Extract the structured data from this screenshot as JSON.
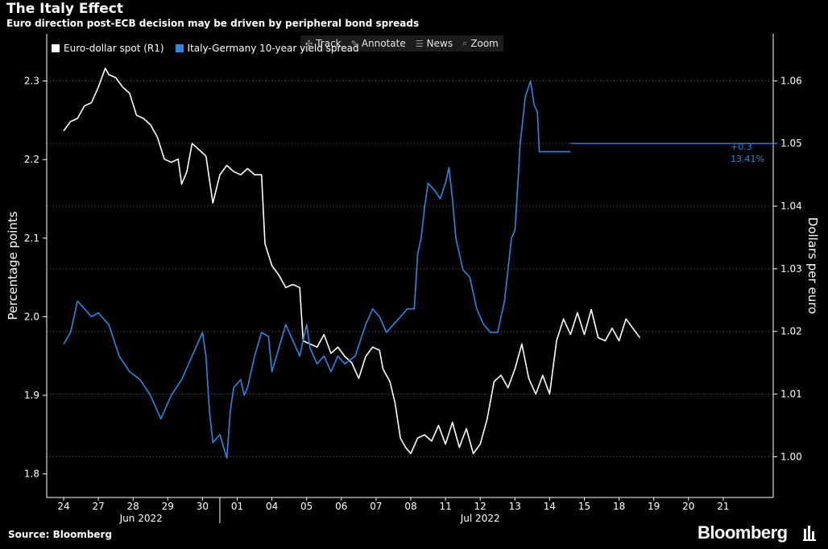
{
  "header": {
    "title": "The Italy Effect",
    "subtitle": "Euro direction post-ECB decision may be driven by peripheral bond spreads"
  },
  "toolbar": [
    {
      "label": "Track",
      "icon": "crosshair-icon",
      "glyph": "✣"
    },
    {
      "label": "Annotate",
      "icon": "pencil-icon",
      "glyph": "✎"
    },
    {
      "label": "News",
      "icon": "news-icon",
      "glyph": "☰"
    },
    {
      "label": "Zoom",
      "icon": "magnifier-icon",
      "glyph": "⌕"
    }
  ],
  "footer": {
    "source": "Source: Bloomberg",
    "brand": "Bloomberg"
  },
  "chart_data": {
    "type": "line",
    "x_tick_labels": [
      "24",
      "27",
      "28",
      "29",
      "30",
      "01",
      "04",
      "05",
      "06",
      "07",
      "08",
      "11",
      "12",
      "13",
      "14",
      "15",
      "18",
      "19",
      "20",
      "21"
    ],
    "month_labels": [
      "Jun 2022",
      "Jul 2022"
    ],
    "ylabel_left": "Percentage points",
    "ylabel_right": "Dollars per euro",
    "yticks_left": [
      "1.8",
      "1.9",
      "2.0",
      "2.1",
      "2.2",
      "2.3"
    ],
    "yticks_right": [
      "1.00",
      "1.01",
      "1.02",
      "1.03",
      "1.04",
      "1.05",
      "1.06"
    ],
    "ylim_left": [
      1.77,
      2.36
    ],
    "ylim_right": [
      0.9935,
      1.0675
    ],
    "grid": "horizontal dotted",
    "legend_position": "top-left",
    "annotation": {
      "line1": "+0.3",
      "line2": "13.41%"
    },
    "colors": {
      "euro": "#ffffff",
      "spread": "#2f86e3",
      "grid": "#666666",
      "annotation": "#2f86e3"
    },
    "series": [
      {
        "name": "Euro-dollar spot (R1)",
        "axis": "right",
        "values": [
          [
            0.0,
            1.052
          ],
          [
            0.2,
            1.0535
          ],
          [
            0.4,
            1.054
          ],
          [
            0.6,
            1.056
          ],
          [
            0.8,
            1.0565
          ],
          [
            1.0,
            1.059
          ],
          [
            1.2,
            1.062
          ],
          [
            1.3,
            1.061
          ],
          [
            1.5,
            1.0605
          ],
          [
            1.7,
            1.059
          ],
          [
            1.9,
            1.058
          ],
          [
            2.1,
            1.0545
          ],
          [
            2.3,
            1.054
          ],
          [
            2.5,
            1.053
          ],
          [
            2.7,
            1.051
          ],
          [
            2.9,
            1.0475
          ],
          [
            3.1,
            1.047
          ],
          [
            3.3,
            1.0475
          ],
          [
            3.4,
            1.0435
          ],
          [
            3.55,
            1.0455
          ],
          [
            3.7,
            1.05
          ],
          [
            3.9,
            1.049
          ],
          [
            4.1,
            1.048
          ],
          [
            4.3,
            1.0405
          ],
          [
            4.5,
            1.045
          ],
          [
            4.7,
            1.0465
          ],
          [
            4.9,
            1.0455
          ],
          [
            5.1,
            1.045
          ],
          [
            5.3,
            1.046
          ],
          [
            5.5,
            1.045
          ],
          [
            5.7,
            1.045
          ],
          [
            5.8,
            1.034
          ],
          [
            6.0,
            1.0305
          ],
          [
            6.2,
            1.029
          ],
          [
            6.4,
            1.027
          ],
          [
            6.6,
            1.0275
          ],
          [
            6.8,
            1.027
          ],
          [
            6.9,
            1.0185
          ],
          [
            7.1,
            1.018
          ],
          [
            7.3,
            1.0175
          ],
          [
            7.5,
            1.0195
          ],
          [
            7.7,
            1.0165
          ],
          [
            7.9,
            1.0175
          ],
          [
            8.1,
            1.016
          ],
          [
            8.3,
            1.015
          ],
          [
            8.5,
            1.0125
          ],
          [
            8.7,
            1.016
          ],
          [
            8.9,
            1.0175
          ],
          [
            9.1,
            1.017
          ],
          [
            9.2,
            1.014
          ],
          [
            9.4,
            1.012
          ],
          [
            9.55,
            1.0085
          ],
          [
            9.7,
            1.003
          ],
          [
            9.85,
            1.0015
          ],
          [
            10.0,
            1.0005
          ],
          [
            10.2,
            1.003
          ],
          [
            10.4,
            1.0035
          ],
          [
            10.6,
            1.0025
          ],
          [
            10.8,
            1.005
          ],
          [
            11.0,
            1.002
          ],
          [
            11.2,
            1.0055
          ],
          [
            11.4,
            1.0015
          ],
          [
            11.6,
            1.0045
          ],
          [
            11.8,
            1.0005
          ],
          [
            12.0,
            1.002
          ],
          [
            12.2,
            1.006
          ],
          [
            12.4,
            1.012
          ],
          [
            12.6,
            1.013
          ],
          [
            12.8,
            1.011
          ],
          [
            13.0,
            1.014
          ],
          [
            13.2,
            1.018
          ],
          [
            13.4,
            1.0125
          ],
          [
            13.6,
            1.01
          ],
          [
            13.8,
            1.013
          ],
          [
            14.0,
            1.01
          ],
          [
            14.2,
            1.0185
          ],
          [
            14.4,
            1.022
          ],
          [
            14.6,
            1.0195
          ],
          [
            14.8,
            1.023
          ],
          [
            15.0,
            1.0195
          ],
          [
            15.2,
            1.0235
          ],
          [
            15.4,
            1.019
          ],
          [
            15.6,
            1.0185
          ],
          [
            15.8,
            1.0205
          ],
          [
            16.0,
            1.0185
          ],
          [
            16.2,
            1.022
          ],
          [
            16.4,
            1.0205
          ],
          [
            16.6,
            1.019
          ]
        ]
      },
      {
        "name": "Italy-Germany 10-year yield spread",
        "axis": "left",
        "values": [
          [
            0.0,
            1.965
          ],
          [
            0.2,
            1.98
          ],
          [
            0.4,
            2.02
          ],
          [
            0.6,
            2.01
          ],
          [
            0.8,
            2.0
          ],
          [
            1.0,
            2.005
          ],
          [
            1.3,
            1.99
          ],
          [
            1.6,
            1.95
          ],
          [
            1.9,
            1.93
          ],
          [
            2.2,
            1.92
          ],
          [
            2.5,
            1.9
          ],
          [
            2.8,
            1.87
          ],
          [
            3.1,
            1.9
          ],
          [
            3.4,
            1.92
          ],
          [
            3.7,
            1.95
          ],
          [
            4.0,
            1.98
          ],
          [
            4.1,
            1.95
          ],
          [
            4.2,
            1.88
          ],
          [
            4.3,
            1.84
          ],
          [
            4.5,
            1.85
          ],
          [
            4.7,
            1.82
          ],
          [
            4.8,
            1.88
          ],
          [
            4.9,
            1.91
          ],
          [
            5.1,
            1.92
          ],
          [
            5.2,
            1.9
          ],
          [
            5.3,
            1.91
          ],
          [
            5.5,
            1.95
          ],
          [
            5.7,
            1.98
          ],
          [
            5.9,
            1.975
          ],
          [
            6.0,
            1.93
          ],
          [
            6.2,
            1.96
          ],
          [
            6.4,
            1.99
          ],
          [
            6.6,
            1.97
          ],
          [
            6.8,
            1.95
          ],
          [
            7.0,
            1.99
          ],
          [
            7.1,
            1.96
          ],
          [
            7.3,
            1.94
          ],
          [
            7.5,
            1.95
          ],
          [
            7.7,
            1.93
          ],
          [
            7.9,
            1.95
          ],
          [
            8.1,
            1.94
          ],
          [
            8.4,
            1.95
          ],
          [
            8.7,
            1.99
          ],
          [
            8.9,
            2.01
          ],
          [
            9.1,
            2.0
          ],
          [
            9.3,
            1.98
          ],
          [
            9.5,
            1.99
          ],
          [
            9.7,
            2.0
          ],
          [
            9.9,
            2.01
          ],
          [
            10.1,
            2.01
          ],
          [
            10.2,
            2.08
          ],
          [
            10.3,
            2.1
          ],
          [
            10.4,
            2.14
          ],
          [
            10.5,
            2.17
          ],
          [
            10.7,
            2.16
          ],
          [
            10.85,
            2.15
          ],
          [
            11.0,
            2.17
          ],
          [
            11.1,
            2.19
          ],
          [
            11.2,
            2.15
          ],
          [
            11.3,
            2.1
          ],
          [
            11.5,
            2.06
          ],
          [
            11.7,
            2.05
          ],
          [
            11.9,
            2.01
          ],
          [
            12.1,
            1.99
          ],
          [
            12.3,
            1.98
          ],
          [
            12.5,
            1.98
          ],
          [
            12.7,
            2.02
          ],
          [
            12.9,
            2.1
          ],
          [
            13.0,
            2.11
          ],
          [
            13.1,
            2.18
          ],
          [
            13.15,
            2.22
          ],
          [
            13.3,
            2.28
          ],
          [
            13.45,
            2.3
          ],
          [
            13.55,
            2.27
          ],
          [
            13.65,
            2.26
          ],
          [
            13.7,
            2.21
          ],
          [
            13.85,
            2.21
          ],
          [
            14.0,
            2.21
          ],
          [
            14.2,
            2.21
          ],
          [
            14.4,
            2.21
          ],
          [
            14.6,
            2.21
          ]
        ]
      }
    ]
  }
}
